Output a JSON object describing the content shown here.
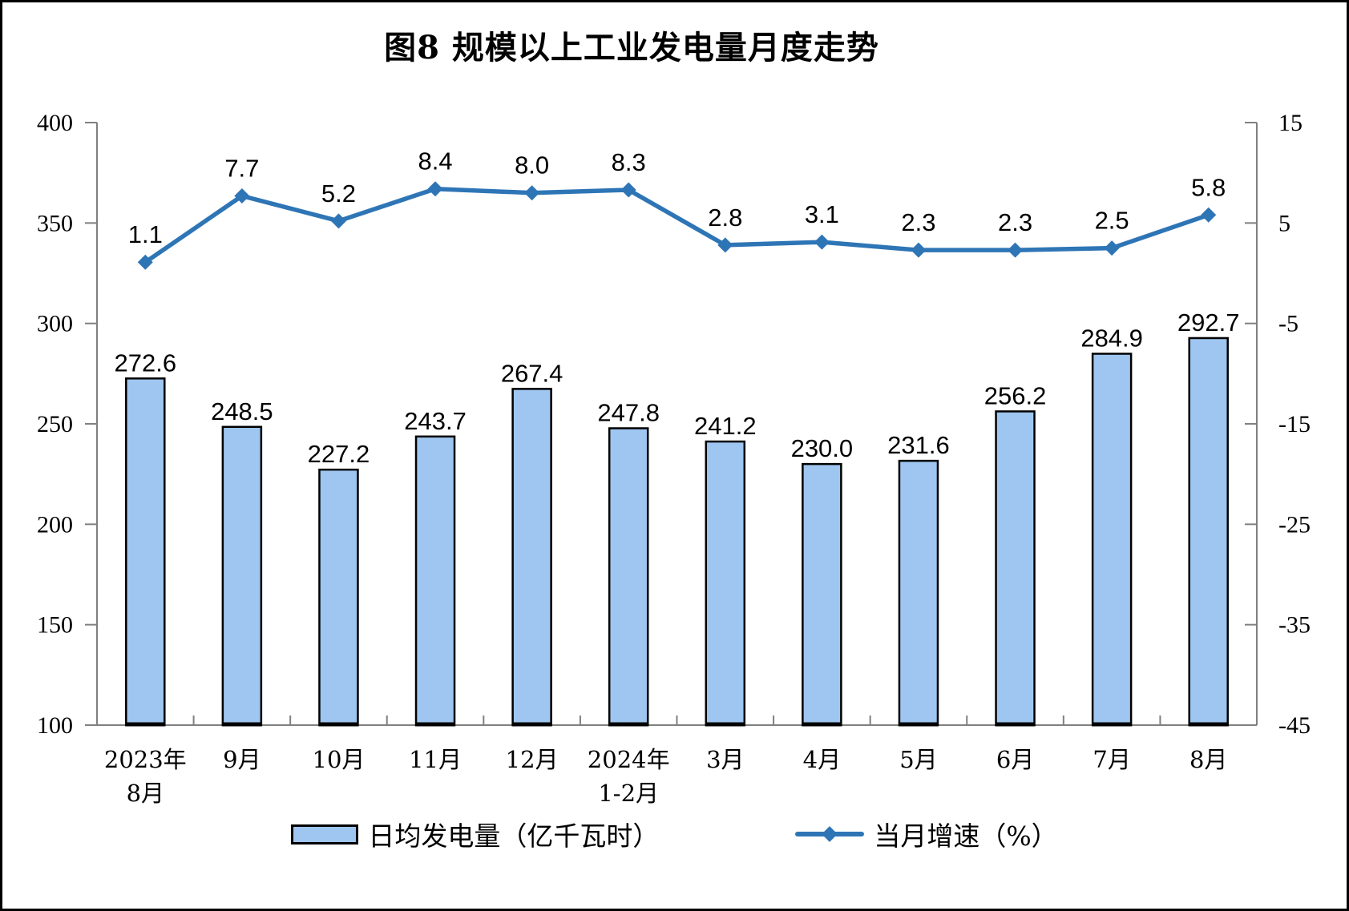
{
  "figure": {
    "title": "图8 规模以上工业发电量月度走势"
  },
  "legend": {
    "bar_label": "日均发电量（亿千瓦时）",
    "line_label": "当月增速（%）"
  },
  "colors": {
    "bar_fill": "#9EC6F0",
    "bar_border": "#000000",
    "line": "#2E75B6",
    "axis": "#808080",
    "text": "#000000",
    "background": "#FFFFFF"
  },
  "chart_data": {
    "type": "bar+line combo",
    "title": "图8 规模以上工业发电量月度走势",
    "grid": false,
    "legend_position": "bottom",
    "categories": [
      [
        "2023年",
        "8月"
      ],
      [
        "9月"
      ],
      [
        "10月"
      ],
      [
        "11月"
      ],
      [
        "12月"
      ],
      [
        "2024年",
        "1-2月"
      ],
      [
        "3月"
      ],
      [
        "4月"
      ],
      [
        "5月"
      ],
      [
        "6月"
      ],
      [
        "7月"
      ],
      [
        "8月"
      ]
    ],
    "left_axis": {
      "label": "",
      "min": 100,
      "max": 400,
      "ticks": [
        "400",
        "350",
        "300",
        "250",
        "200",
        "150",
        "100"
      ]
    },
    "right_axis": {
      "label": "",
      "min": -45,
      "max": 15,
      "ticks": [
        "15",
        "5",
        "-5",
        "-15",
        "-25",
        "-35",
        "-45"
      ]
    },
    "series": [
      {
        "name": "日均发电量（亿千瓦时）",
        "type": "bar",
        "axis": "left",
        "values": [
          272.6,
          248.5,
          227.2,
          243.7,
          267.4,
          247.8,
          241.2,
          230.0,
          231.6,
          256.2,
          284.9,
          292.7
        ],
        "labels": [
          "272.6",
          "248.5",
          "227.2",
          "243.7",
          "267.4",
          "247.8",
          "241.2",
          "230.0",
          "231.6",
          "256.2",
          "284.9",
          "292.7"
        ]
      },
      {
        "name": "当月增速（%）",
        "type": "line",
        "axis": "right",
        "values": [
          1.1,
          7.7,
          5.2,
          8.4,
          8.0,
          8.3,
          2.8,
          3.1,
          2.3,
          2.3,
          2.5,
          5.8
        ],
        "labels": [
          "1.1",
          "7.7",
          "5.2",
          "8.4",
          "8.0",
          "8.3",
          "2.8",
          "3.1",
          "2.3",
          "2.3",
          "2.5",
          "5.8"
        ]
      }
    ]
  }
}
